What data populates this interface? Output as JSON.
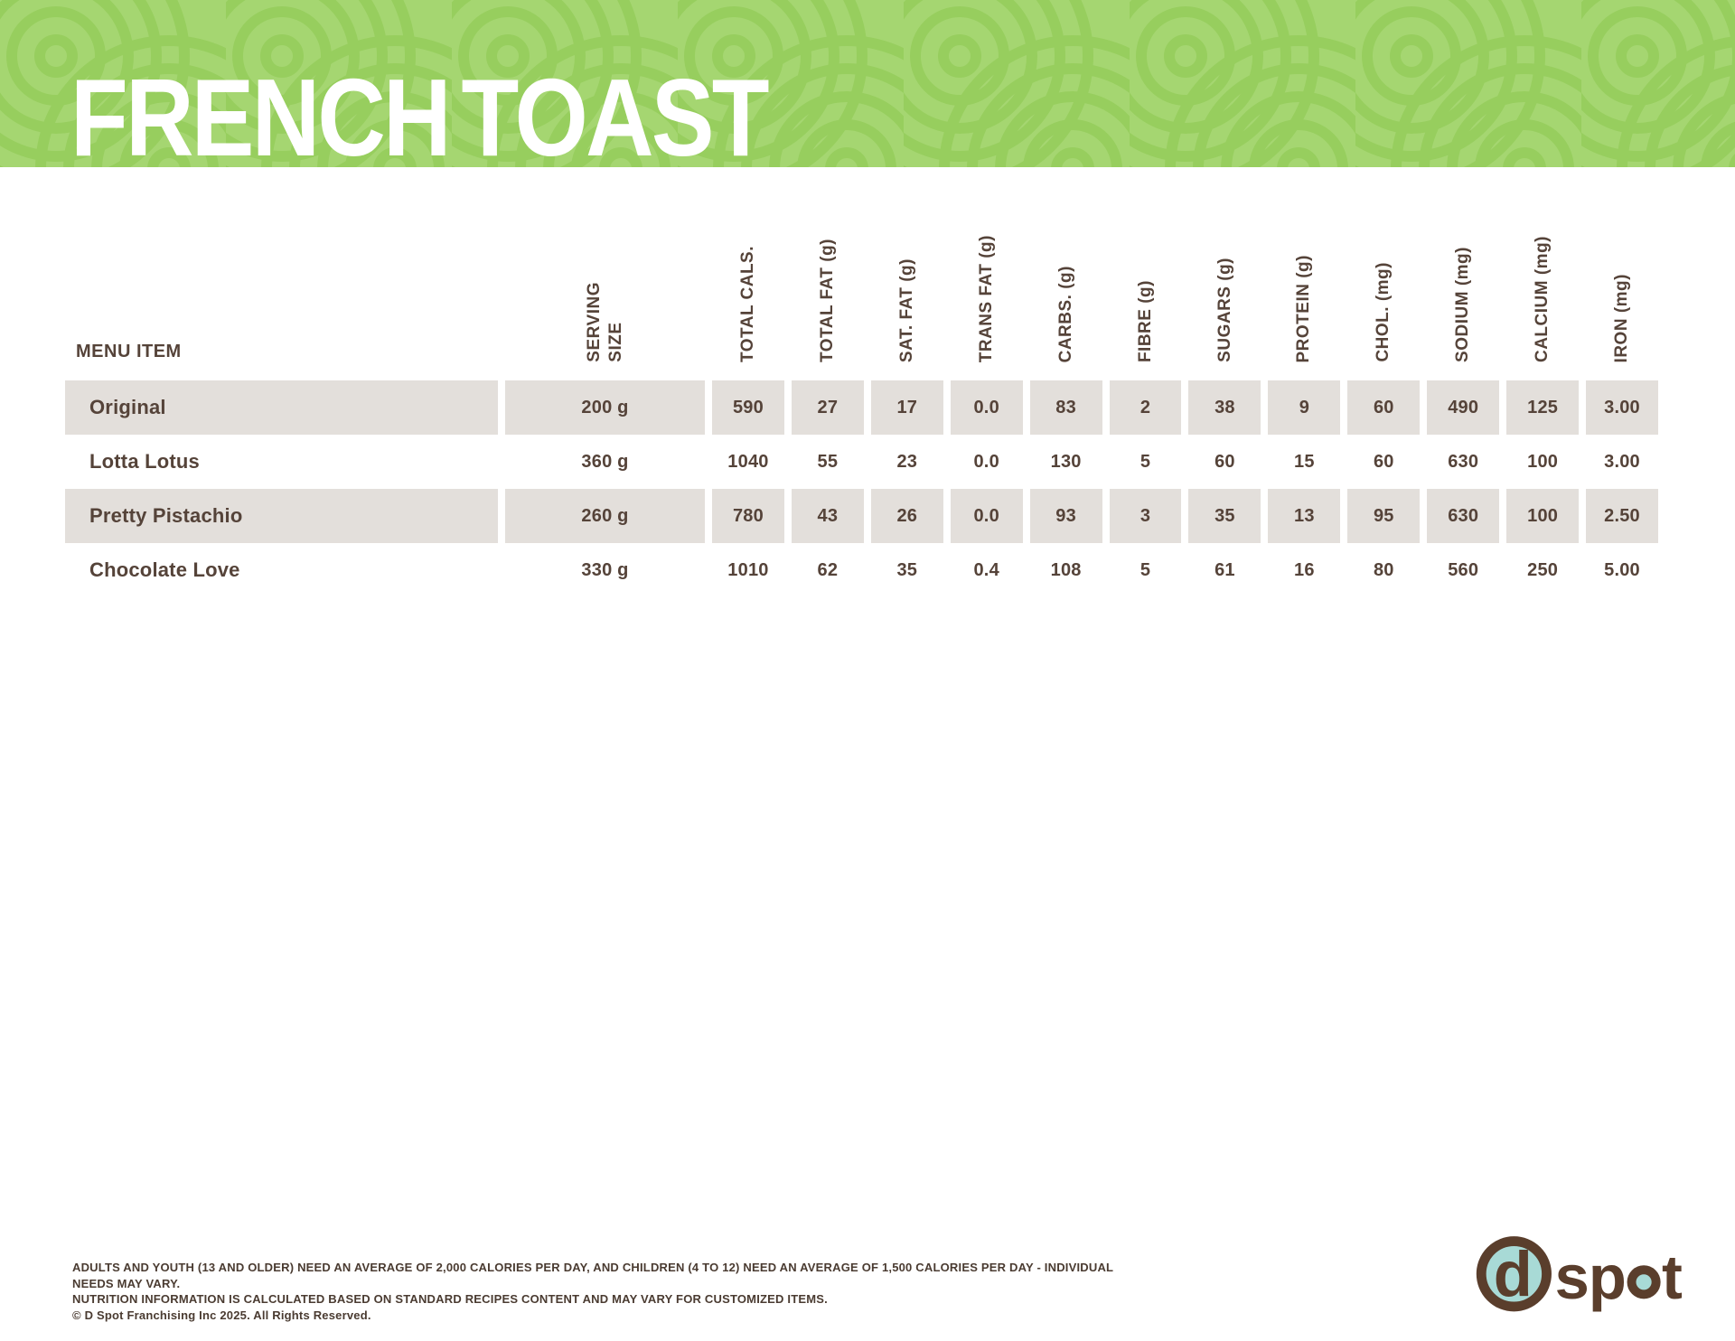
{
  "title": "FRENCH TOAST",
  "table": {
    "menu_item_header": "MENU ITEM",
    "columns": [
      "SERVING\nSIZE",
      "TOTAL CALS.",
      "TOTAL FAT (g)",
      "SAT. FAT (g)",
      "TRANS FAT (g)",
      "CARBS. (g)",
      "FIBRE (g)",
      "SUGARS (g)",
      "PROTEIN (g)",
      "CHOL. (mg)",
      "SODIUM (mg)",
      "CALCIUM (mg)",
      "IRON (mg)"
    ],
    "rows": [
      {
        "name": "Original",
        "values": [
          "200 g",
          "590",
          "27",
          "17",
          "0.0",
          "83",
          "2",
          "38",
          "9",
          "60",
          "490",
          "125",
          "3.00"
        ]
      },
      {
        "name": "Lotta Lotus",
        "values": [
          "360 g",
          "1040",
          "55",
          "23",
          "0.0",
          "130",
          "5",
          "60",
          "15",
          "60",
          "630",
          "100",
          "3.00"
        ]
      },
      {
        "name": "Pretty Pistachio",
        "values": [
          "260 g",
          "780",
          "43",
          "26",
          "0.0",
          "93",
          "3",
          "35",
          "13",
          "95",
          "630",
          "100",
          "2.50"
        ]
      },
      {
        "name": "Chocolate Love",
        "values": [
          "330 g",
          "1010",
          "62",
          "35",
          "0.4",
          "108",
          "5",
          "61",
          "16",
          "80",
          "560",
          "250",
          "5.00"
        ]
      }
    ]
  },
  "footer": {
    "line1": "ADULTS AND YOUTH (13 AND OLDER) NEED AN AVERAGE OF 2,000 CALORIES PER DAY, AND CHILDREN (4 TO 12) NEED AN AVERAGE OF 1,500 CALORIES PER DAY - INDIVIDUAL NEEDS MAY VARY.",
    "line2": "NUTRITION INFORMATION IS CALCULATED BASED ON STANDARD RECIPES CONTENT AND MAY VARY FOR CUSTOMIZED ITEMS.",
    "line3": "© D Spot Franchising Inc 2025. All Rights Reserved."
  },
  "logo": {
    "d_letter": "d",
    "sp_letters": "sp",
    "t_letter": "t"
  },
  "colors": {
    "banner_green_base": "#a5d671",
    "banner_green_ring": "#97ce5e",
    "row_stripe_grey": "#e3dfdb",
    "text_brown": "#554339",
    "logo_brown": "#5a3e2c",
    "logo_teal": "#a8dad6"
  }
}
